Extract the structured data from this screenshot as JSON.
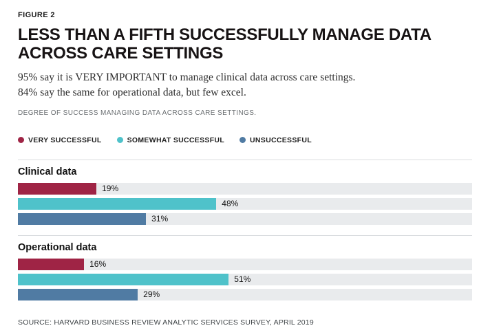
{
  "figure_label": "FIGURE 2",
  "title_line1": "LESS THAN A FIFTH SUCCESSFULLY MANAGE DATA",
  "title_line2": "ACROSS CARE SETTINGS",
  "subtitle_line1": "95% say it is VERY IMPORTANT to manage clinical data across care settings.",
  "subtitle_line2": "84% say the same for operational data, but few excel.",
  "caption": "DEGREE OF SUCCESS MANAGING DATA ACROSS CARE SETTINGS.",
  "source": "SOURCE: HARVARD BUSINESS REVIEW ANALYTIC SERVICES SURVEY, APRIL 2019",
  "chart_data": {
    "type": "bar",
    "orientation": "horizontal",
    "title": "DEGREE OF SUCCESS MANAGING DATA ACROSS CARE SETTINGS.",
    "categories": [
      "Clinical data",
      "Operational data"
    ],
    "series": [
      {
        "name": "VERY SUCCESSFUL",
        "color": "#9f2445",
        "values": [
          19,
          16
        ]
      },
      {
        "name": "SOMEWHAT SUCCESSFUL",
        "color": "#4fc2ca",
        "values": [
          48,
          51
        ]
      },
      {
        "name": "UNSUCCESSFUL",
        "color": "#507ba3",
        "values": [
          31,
          29
        ]
      }
    ],
    "value_suffix": "%",
    "xlim": [
      0,
      100
    ],
    "grid": false,
    "track_color": "#e9ebed",
    "legend_position": "top"
  }
}
